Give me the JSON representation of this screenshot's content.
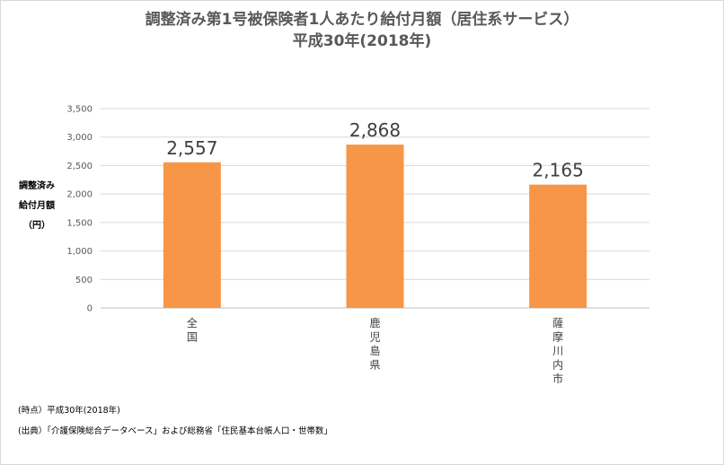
{
  "chart_data": {
    "type": "bar",
    "title_line1": "調整済み第1号被保険者1人あたり給付月額（居住系サービス）",
    "title_line2": "平成30年(2018年)",
    "ylabel_lines": [
      "調整済み",
      "給付月額",
      "（円）"
    ],
    "categories": [
      "全国",
      "鹿児島県",
      "薩摩川内市"
    ],
    "values": [
      2557,
      2868,
      2165
    ],
    "data_labels": [
      "2,557",
      "2,868",
      "2,165"
    ],
    "ylim": [
      0,
      3500
    ],
    "yticks": [
      0,
      500,
      1000,
      1500,
      2000,
      2500,
      3000,
      3500
    ],
    "ytick_labels": [
      "0",
      "500",
      "1,000",
      "1,500",
      "2,000",
      "2,500",
      "3,000",
      "3,500"
    ],
    "bar_color": "#f79646",
    "grid": true,
    "legend": "none"
  },
  "footer": {
    "time_note": "(時点）平成30年(2018年)",
    "source_note": "(出典）「介護保険総合データベース」および総務省「住民基本台帳人口・世帯数」"
  }
}
